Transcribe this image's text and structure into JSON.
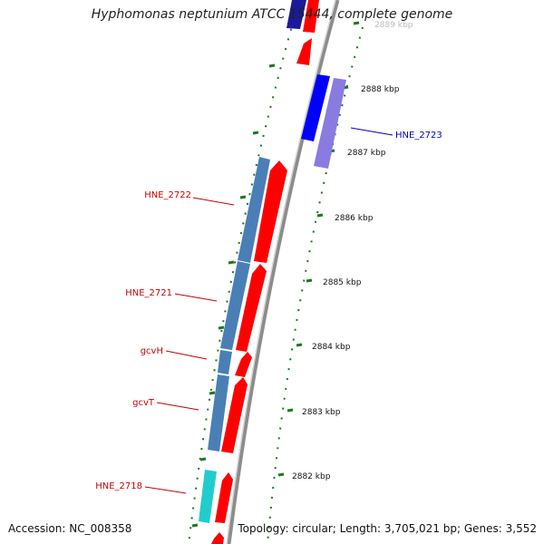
{
  "title": "Hyphomonas neptunium ATCC 15444, complete genome",
  "footer": {
    "accession": "Accession: NC_008358",
    "topology": "Topology: circular; Length: 3,705,021 bp; Genes: 3,552"
  },
  "ticks": [
    {
      "label": "2889 kbp",
      "kbp": 2889
    },
    {
      "label": "2888 kbp",
      "kbp": 2888
    },
    {
      "label": "2887 kbp",
      "kbp": 2887
    },
    {
      "label": "2886 kbp",
      "kbp": 2886
    },
    {
      "label": "2885 kbp",
      "kbp": 2885
    },
    {
      "label": "2884 kbp",
      "kbp": 2884
    },
    {
      "label": "2883 kbp",
      "kbp": 2883
    },
    {
      "label": "2882 kbp",
      "kbp": 2882
    }
  ],
  "gene_labels": [
    {
      "name": "HNE_2723",
      "color": "#0000cc"
    },
    {
      "name": "HNE_2722",
      "color": "#cc0000"
    },
    {
      "name": "HNE_2721",
      "color": "#cc0000"
    },
    {
      "name": "gcvH",
      "color": "#cc0000"
    },
    {
      "name": "gcvT",
      "color": "#cc0000"
    },
    {
      "name": "HNE_2718",
      "color": "#cc0000"
    }
  ],
  "colors": {
    "backbone": "#8c8c8c",
    "tick_green": "#1a7a1a",
    "cds_red": "#ff0000",
    "steelblue": "#4a7fb5",
    "blue": "#0000ff",
    "purple": "#8a7be0",
    "navy": "#00008b",
    "cyan": "#22cccc"
  }
}
